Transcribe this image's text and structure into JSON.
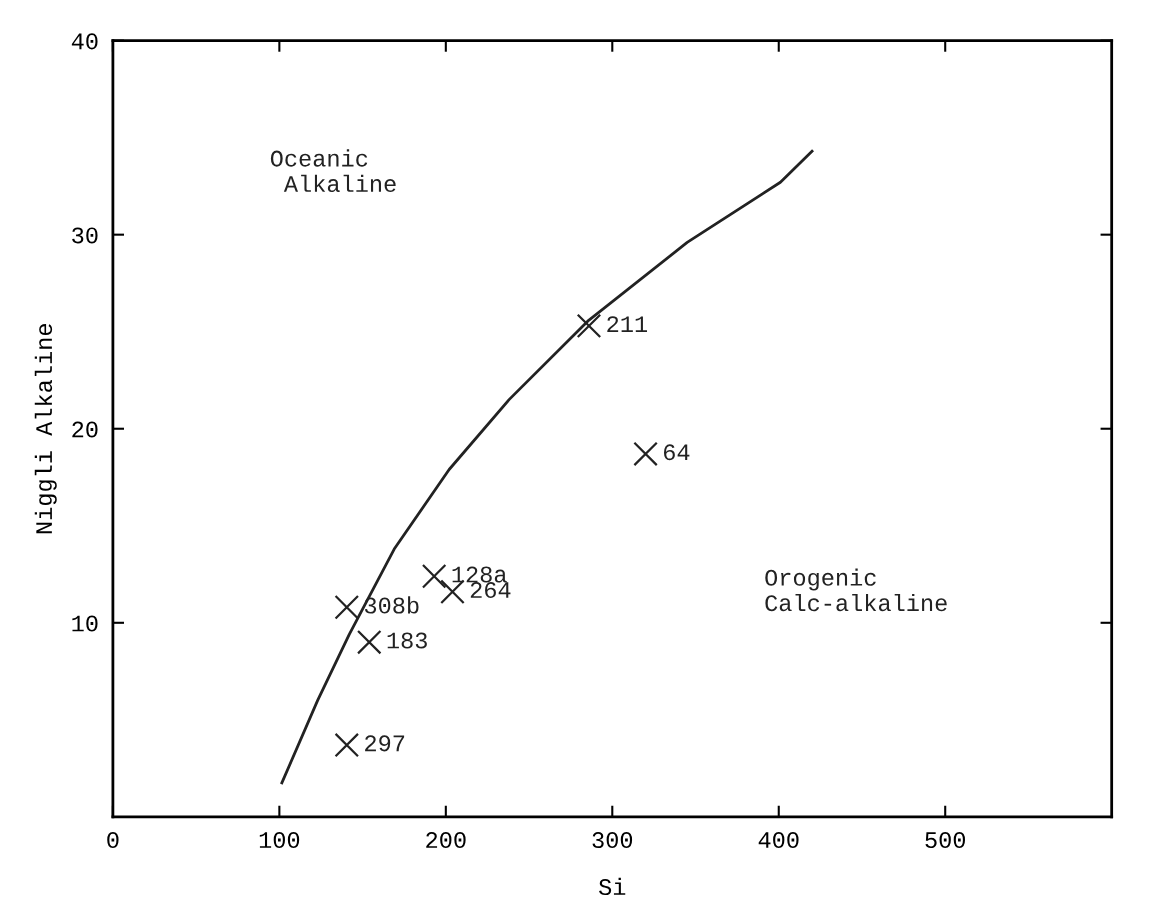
{
  "chart_data": {
    "type": "scatter",
    "xlabel": "Si",
    "ylabel": "Niggli Alkaline",
    "xlim": [
      0,
      600
    ],
    "xticks": [
      0,
      100,
      200,
      300,
      400,
      500
    ],
    "ylim": [
      0,
      40
    ],
    "yticks": [
      10,
      20,
      30,
      40
    ],
    "grid": false,
    "legend": false,
    "marker": "cross",
    "series": [
      {
        "color": "#222222",
        "x": [
          286,
          320,
          193,
          204,
          140.5,
          154,
          140.5
        ],
        "values": [
          25.3,
          18.7,
          12.4,
          11.6,
          10.8,
          9.0,
          3.7
        ]
      },
      {
        "type": "line",
        "color": "#222222",
        "line_style": "solid",
        "marker": "none",
        "x": [
          101.5,
          123,
          142,
          169,
          202,
          238,
          286,
          345,
          401,
          420
        ],
        "values": [
          1.75,
          6.0,
          9.4,
          13.8,
          17.9,
          21.5,
          25.6,
          29.6,
          32.7,
          34.3
        ]
      }
    ],
    "annotations": [
      {
        "text": "211",
        "x": 286,
        "y": 25.3
      },
      {
        "text": "64",
        "x": 320,
        "y": 18.7
      },
      {
        "text": "128a",
        "x": 193,
        "y": 12.4
      },
      {
        "text": "264",
        "x": 204,
        "y": 11.6
      },
      {
        "text": "308b",
        "x": 140.5,
        "y": 10.8
      },
      {
        "text": "183",
        "x": 154,
        "y": 9.0
      },
      {
        "text": "297",
        "x": 140.5,
        "y": 3.7
      },
      "Oceanic\n Alkaline",
      "Orogenic\nCalc-alkaline"
    ]
  }
}
